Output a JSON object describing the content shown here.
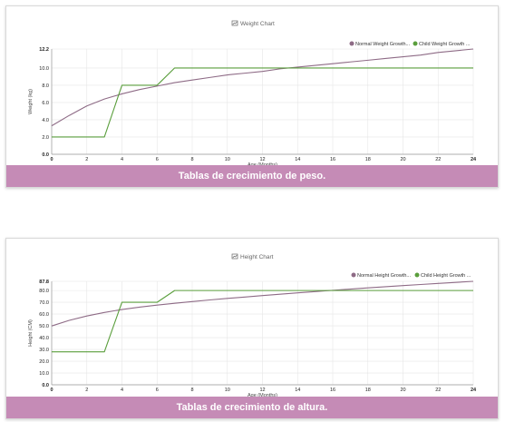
{
  "weight_card": {
    "banner": "Tablas de crecimiento de peso.",
    "icon": "line-chart-icon"
  },
  "height_card": {
    "banner": "Tablas de crecimiento de altura.",
    "icon": "line-chart-icon"
  },
  "colors": {
    "normal": "#8e6b86",
    "child": "#5a9e3c",
    "banner": "#c58bb6"
  },
  "chart_data": [
    {
      "type": "line",
      "title": "Weight Chart",
      "xlabel": "Age (Months)",
      "ylabel": "Weight (kg)",
      "xlim": [
        0,
        24
      ],
      "ylim": [
        0,
        12.2
      ],
      "x_ticks": [
        "0",
        "2",
        "4",
        "6",
        "8",
        "10",
        "12",
        "14",
        "16",
        "18",
        "20",
        "22",
        "24"
      ],
      "y_ticks": [
        "0.0",
        "2.0",
        "4.0",
        "6.0",
        "8.0",
        "10.0",
        "12.2"
      ],
      "grid": true,
      "legend": "top-right",
      "series": [
        {
          "name": "Normal Weight Growth...",
          "x": [
            0,
            1,
            2,
            3,
            4,
            5,
            6,
            7,
            8,
            9,
            10,
            11,
            12,
            13,
            14,
            15,
            16,
            17,
            18,
            19,
            20,
            21,
            22,
            23,
            24
          ],
          "values": [
            3.3,
            4.5,
            5.6,
            6.4,
            7.0,
            7.5,
            7.9,
            8.3,
            8.6,
            8.9,
            9.2,
            9.4,
            9.6,
            9.9,
            10.1,
            10.3,
            10.5,
            10.7,
            10.9,
            11.1,
            11.3,
            11.5,
            11.8,
            12.0,
            12.2
          ]
        },
        {
          "name": "Child Weight Growth ...",
          "x": [
            0,
            1,
            2,
            3,
            4,
            5,
            6,
            7,
            8,
            9,
            10,
            11,
            12,
            13,
            14,
            15,
            16,
            17,
            18,
            19,
            20,
            21,
            22,
            23,
            24
          ],
          "values": [
            2,
            2,
            2,
            2,
            8,
            8,
            8,
            10,
            10,
            10,
            10,
            10,
            10,
            10,
            10,
            10,
            10,
            10,
            10,
            10,
            10,
            10,
            10,
            10,
            10
          ]
        }
      ]
    },
    {
      "type": "line",
      "title": "Height Chart",
      "xlabel": "Age (Months)",
      "ylabel": "Height (CM)",
      "xlim": [
        0,
        24
      ],
      "ylim": [
        0,
        87.8
      ],
      "x_ticks": [
        "0",
        "2",
        "4",
        "6",
        "8",
        "10",
        "12",
        "14",
        "16",
        "18",
        "20",
        "22",
        "24"
      ],
      "y_ticks": [
        "0.0",
        "10.0",
        "20.0",
        "30.0",
        "40.0",
        "50.0",
        "60.0",
        "70.0",
        "80.0",
        "87.8"
      ],
      "grid": true,
      "legend": "top-right",
      "series": [
        {
          "name": "Normal Height Growth...",
          "x": [
            0,
            1,
            2,
            3,
            4,
            5,
            6,
            7,
            8,
            9,
            10,
            11,
            12,
            13,
            14,
            15,
            16,
            17,
            18,
            19,
            20,
            21,
            22,
            23,
            24
          ],
          "values": [
            49.9,
            54.7,
            58.4,
            61.4,
            63.9,
            65.9,
            67.6,
            69.2,
            70.6,
            72.0,
            73.3,
            74.5,
            75.7,
            76.9,
            78.0,
            79.1,
            80.2,
            81.2,
            82.3,
            83.2,
            84.2,
            85.1,
            86.0,
            86.9,
            87.8
          ]
        },
        {
          "name": "Child Height Growth ...",
          "x": [
            0,
            1,
            2,
            3,
            4,
            5,
            6,
            7,
            8,
            9,
            10,
            11,
            12,
            13,
            14,
            15,
            16,
            17,
            18,
            19,
            20,
            21,
            22,
            23,
            24
          ],
          "values": [
            28,
            28,
            28,
            28,
            70,
            70,
            70,
            80,
            80,
            80,
            80,
            80,
            80,
            80,
            80,
            80,
            80,
            80,
            80,
            80,
            80,
            80,
            80,
            80,
            80
          ]
        }
      ]
    }
  ]
}
